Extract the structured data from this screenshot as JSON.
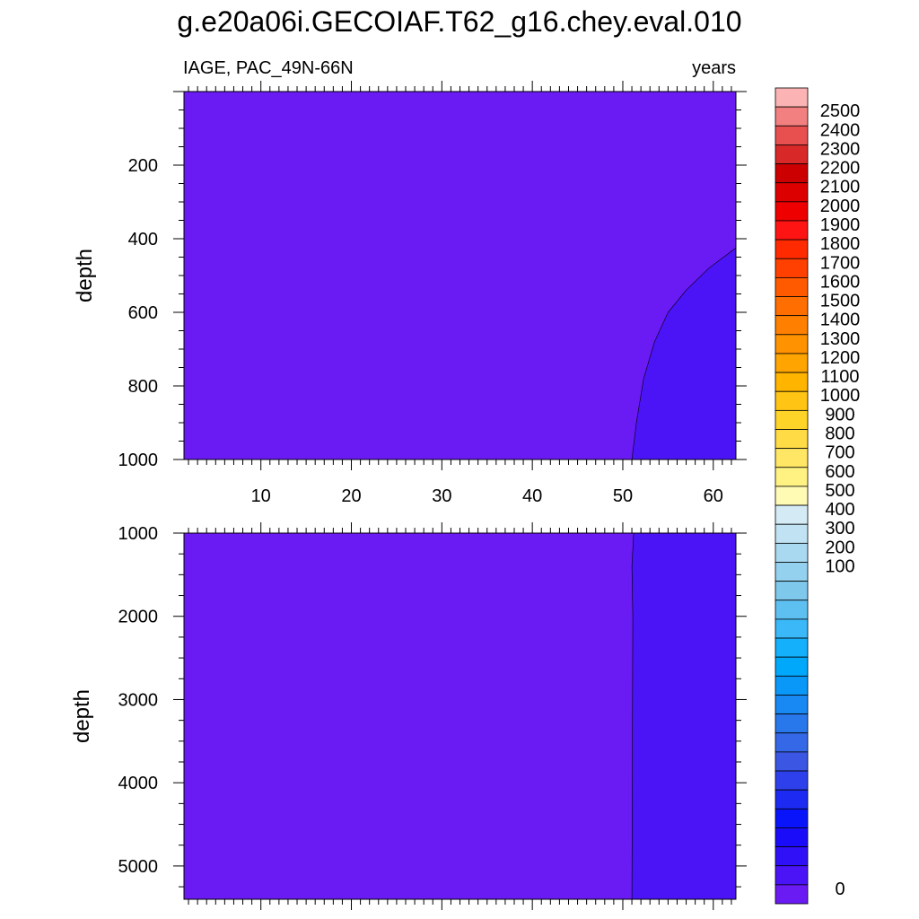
{
  "title": "g.e20a06i.GECOIAF.T62_g16.chey.eval.010",
  "left_label": "IAGE, PAC_49N-66N",
  "right_label": "years",
  "chart_data": [
    {
      "type": "heatmap",
      "panel": "upper",
      "variable": "IAGE",
      "region": "PAC_49N-66N",
      "units": "years",
      "xlabel": "",
      "ylabel": "depth",
      "xlim": [
        1.5,
        62.5
      ],
      "ylim": [
        1000,
        0
      ],
      "x_ticks": [
        10,
        20,
        30,
        40,
        50,
        60
      ],
      "y_ticks": [
        200,
        400,
        600,
        800,
        1000
      ],
      "regions": [
        {
          "level_range": [
            0,
            50
          ],
          "color": "#6a1af2"
        },
        {
          "level_range": [
            50,
            100
          ],
          "color": "#4a14f7",
          "boundary": [
            [
              51.0,
              1000
            ],
            [
              51.5,
              900
            ],
            [
              52.3,
              780
            ],
            [
              53.5,
              680
            ],
            [
              55.0,
              600
            ],
            [
              57.0,
              540
            ],
            [
              59.5,
              480
            ],
            [
              62.5,
              425
            ]
          ]
        }
      ]
    },
    {
      "type": "heatmap",
      "panel": "lower",
      "variable": "IAGE",
      "region": "PAC_49N-66N",
      "units": "years",
      "xlabel": "",
      "ylabel": "depth",
      "xlim": [
        1.5,
        62.5
      ],
      "ylim": [
        5400,
        1000
      ],
      "x_ticks": [
        10,
        20,
        30,
        40,
        50,
        60
      ],
      "y_ticks": [
        1000,
        2000,
        3000,
        4000,
        5000
      ],
      "regions": [
        {
          "level_range": [
            0,
            50
          ],
          "color": "#6a1af2"
        },
        {
          "level_range": [
            50,
            100
          ],
          "color": "#4a14f7",
          "boundary": [
            [
              51.2,
              1000
            ],
            [
              51.0,
              1400
            ],
            [
              51.1,
              2000
            ],
            [
              51.0,
              5400
            ]
          ]
        }
      ]
    }
  ],
  "colorbar": {
    "labels": [
      "2500",
      "2400",
      "2300",
      "2200",
      "2100",
      "2000",
      "1900",
      "1800",
      "1700",
      "1600",
      "1500",
      "1400",
      "1300",
      "1200",
      "1100",
      "1000",
      "900",
      "800",
      "700",
      "600",
      "500",
      "400",
      "300",
      "200",
      "100",
      "0"
    ],
    "colors_top_to_bottom": [
      "#fbb3b3",
      "#f28080",
      "#e85050",
      "#d92828",
      "#cc0000",
      "#dd0000",
      "#ee0000",
      "#ff1414",
      "#ff2a00",
      "#ff4000",
      "#ff5a00",
      "#ff6e00",
      "#ff8000",
      "#ff9200",
      "#ffa400",
      "#ffb400",
      "#ffc414",
      "#ffd428",
      "#ffdc46",
      "#ffe664",
      "#fff282",
      "#fffab4",
      "#d4eaf5",
      "#c0e2f2",
      "#a9d9f0",
      "#94d1ee",
      "#7ec8ec",
      "#5ec0f0",
      "#3ab8f8",
      "#14b0fc",
      "#00a8fc",
      "#0a98f8",
      "#1888f2",
      "#2878ec",
      "#3468e6",
      "#3a56e2",
      "#2e40ec",
      "#1c2af2",
      "#0a14fa",
      "#1a0cf8",
      "#3010f6",
      "#4a14f7",
      "#6a1af2"
    ]
  }
}
